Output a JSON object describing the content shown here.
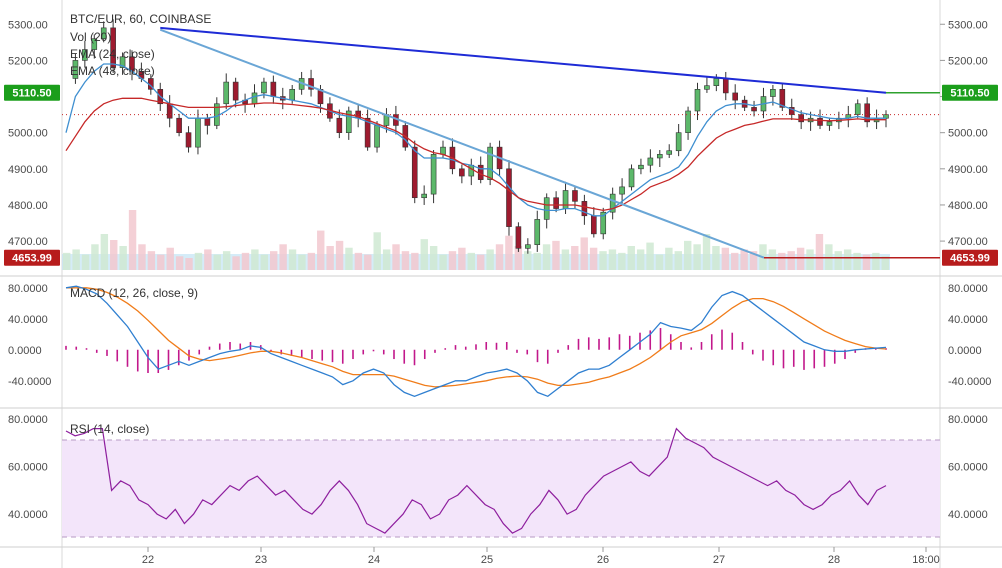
{
  "chart_data": [
    {
      "type": "line",
      "panel": "price",
      "title": "BTC/EUR, 60, COINBASE",
      "legend": [
        "BTC/EUR, 60, COINBASE",
        "Vol (20)",
        "EMA (24, close)",
        "EMA (48, close)"
      ],
      "y_ticks": [
        "5300.00",
        "5200.00",
        "5100.00",
        "5000.00",
        "4900.00",
        "4800.00",
        "4700.00"
      ],
      "ylim": [
        4620,
        5345
      ],
      "x_ticks": [
        "22",
        "23",
        "24",
        "25",
        "26",
        "27",
        "28",
        "18:00"
      ],
      "price_tags": [
        {
          "label": "5110.50",
          "color": "#1b9e1b"
        },
        {
          "label": "4653.99",
          "color": "#b71c1c"
        }
      ],
      "price_path": [
        5150,
        5200,
        5230,
        5260,
        5290,
        5180,
        5210,
        5170,
        5150,
        5120,
        5080,
        5040,
        5000,
        4960,
        5040,
        5020,
        5080,
        5140,
        5090,
        5080,
        5110,
        5140,
        5100,
        5090,
        5120,
        5150,
        5120,
        5080,
        5040,
        5000,
        5060,
        5040,
        4960,
        5020,
        5050,
        5020,
        4960,
        4820,
        4830,
        4940,
        4960,
        4900,
        4880,
        4910,
        4870,
        4960,
        4900,
        4740,
        4680,
        4690,
        4760,
        4820,
        4790,
        4840,
        4810,
        4770,
        4720,
        4780,
        4830,
        4850,
        4900,
        4910,
        4930,
        4940,
        4950,
        5000,
        5060,
        5120,
        5130,
        5150,
        5110,
        5090,
        5070,
        5060,
        5100,
        5120,
        5070,
        5050,
        5030,
        5040,
        5020,
        5030,
        5040,
        5050,
        5080,
        5030,
        5040,
        5050
      ],
      "ema24": [
        5000,
        5100,
        5140,
        5170,
        5190,
        5190,
        5185,
        5170,
        5150,
        5130,
        5100,
        5080,
        5060,
        5040,
        5040,
        5040,
        5045,
        5060,
        5080,
        5090,
        5100,
        5105,
        5100,
        5095,
        5090,
        5085,
        5080,
        5070,
        5060,
        5050,
        5045,
        5040,
        5030,
        5020,
        5010,
        5000,
        4980,
        4950,
        4930,
        4930,
        4930,
        4925,
        4915,
        4910,
        4900,
        4900,
        4880,
        4850,
        4820,
        4800,
        4790,
        4785,
        4785,
        4790,
        4790,
        4780,
        4770,
        4770,
        4790,
        4810,
        4830,
        4850,
        4870,
        4880,
        4890,
        4905,
        4940,
        4990,
        5030,
        5060,
        5075,
        5080,
        5080,
        5075,
        5080,
        5085,
        5075,
        5065,
        5055,
        5050,
        5045,
        5040,
        5038,
        5040,
        5045,
        5040,
        5040,
        5040
      ],
      "ema48": [
        4950,
        4990,
        5030,
        5060,
        5080,
        5090,
        5095,
        5095,
        5095,
        5090,
        5085,
        5080,
        5075,
        5070,
        5070,
        5070,
        5070,
        5072,
        5075,
        5078,
        5080,
        5082,
        5082,
        5080,
        5078,
        5075,
        5072,
        5068,
        5062,
        5055,
        5050,
        5045,
        5035,
        5025,
        5015,
        5005,
        4990,
        4970,
        4955,
        4945,
        4940,
        4930,
        4915,
        4900,
        4885,
        4875,
        4860,
        4840,
        4820,
        4810,
        4805,
        4800,
        4800,
        4800,
        4800,
        4795,
        4790,
        4785,
        4790,
        4800,
        4815,
        4830,
        4850,
        4860,
        4870,
        4885,
        4905,
        4935,
        4960,
        4985,
        5000,
        5010,
        5020,
        5025,
        5032,
        5038,
        5038,
        5038,
        5036,
        5035,
        5034,
        5033,
        5034,
        5036,
        5038,
        5036,
        5036,
        5036
      ],
      "volume": [
        20,
        24,
        18,
        30,
        42,
        35,
        28,
        70,
        30,
        22,
        18,
        26,
        16,
        14,
        20,
        24,
        18,
        22,
        16,
        20,
        24,
        18,
        22,
        30,
        24,
        18,
        20,
        46,
        28,
        34,
        26,
        20,
        18,
        44,
        24,
        30,
        22,
        20,
        36,
        28,
        18,
        22,
        26,
        20,
        18,
        24,
        30,
        40,
        28,
        22,
        20,
        30,
        34,
        24,
        28,
        38,
        26,
        22,
        24,
        20,
        28,
        24,
        32,
        18,
        26,
        22,
        34,
        30,
        42,
        28,
        26,
        20,
        24,
        22,
        30,
        24,
        20,
        22,
        26,
        24,
        42,
        30,
        22,
        24,
        20,
        18,
        20,
        16
      ],
      "trendlines": [
        "resistance",
        "support"
      ]
    },
    {
      "type": "line",
      "panel": "macd",
      "title": "MACD (12, 26, close, 9)",
      "y_ticks": [
        "80.0000",
        "40.0000",
        "0.0000",
        "-40.0000"
      ],
      "ylim": [
        -70,
        90
      ],
      "macd": [
        80,
        82,
        78,
        72,
        60,
        45,
        30,
        10,
        -10,
        -25,
        -20,
        -15,
        -20,
        -15,
        -10,
        -5,
        -2,
        0,
        5,
        3,
        -5,
        -10,
        -15,
        -20,
        -25,
        -30,
        -35,
        -45,
        -40,
        -30,
        -25,
        -30,
        -45,
        -55,
        -60,
        -55,
        -50,
        -45,
        -40,
        -40,
        -35,
        -30,
        -28,
        -25,
        -30,
        -40,
        -55,
        -60,
        -50,
        -40,
        -30,
        -25,
        -25,
        -20,
        -10,
        0,
        10,
        20,
        35,
        30,
        28,
        25,
        35,
        55,
        70,
        75,
        70,
        60,
        50,
        40,
        30,
        20,
        10,
        5,
        0,
        -2,
        -2,
        0,
        1,
        2,
        3
      ],
      "signal": [
        80,
        80,
        80,
        78,
        74,
        68,
        60,
        50,
        38,
        25,
        12,
        2,
        -8,
        -12,
        -14,
        -12,
        -10,
        -7,
        -4,
        -2,
        -2,
        -4,
        -7,
        -10,
        -14,
        -18,
        -22,
        -28,
        -32,
        -32,
        -32,
        -32,
        -34,
        -38,
        -42,
        -46,
        -48,
        -47,
        -46,
        -44,
        -42,
        -40,
        -37,
        -35,
        -34,
        -35,
        -38,
        -43,
        -46,
        -46,
        -44,
        -42,
        -38,
        -35,
        -30,
        -25,
        -18,
        -10,
        0,
        10,
        18,
        22,
        26,
        34,
        44,
        54,
        62,
        66,
        66,
        62,
        56,
        48,
        40,
        32,
        24,
        18,
        12,
        8,
        4,
        2,
        1
      ],
      "histogram": [
        5,
        4,
        2,
        -4,
        -8,
        -15,
        -22,
        -28,
        -30,
        -30,
        -26,
        -20,
        -14,
        -6,
        4,
        8,
        10,
        8,
        10,
        6,
        -2,
        -6,
        -8,
        -10,
        -12,
        -14,
        -16,
        -18,
        -12,
        -6,
        -2,
        -6,
        -12,
        -18,
        -20,
        -12,
        -4,
        2,
        6,
        4,
        7,
        10,
        9,
        10,
        -4,
        -6,
        -16,
        -18,
        -4,
        6,
        14,
        16,
        14,
        16,
        20,
        18,
        22,
        25,
        28,
        20,
        10,
        3,
        10,
        20,
        26,
        22,
        10,
        -6,
        -14,
        -20,
        -24,
        -22,
        -26,
        -24,
        -22,
        -18,
        -12,
        -4,
        2,
        3,
        2
      ]
    },
    {
      "type": "line",
      "panel": "rsi",
      "title": "RSI (14, close)",
      "y_ticks": [
        "80.0000",
        "60.0000",
        "40.0000"
      ],
      "ylim": [
        27,
        83
      ],
      "band": [
        30,
        70
      ],
      "rsi": [
        75,
        73,
        74,
        76,
        76,
        50,
        54,
        52,
        46,
        44,
        40,
        38,
        42,
        36,
        40,
        46,
        44,
        48,
        52,
        50,
        54,
        56,
        52,
        48,
        50,
        46,
        42,
        40,
        44,
        50,
        54,
        50,
        44,
        36,
        34,
        32,
        36,
        40,
        46,
        44,
        38,
        40,
        46,
        48,
        52,
        48,
        44,
        42,
        36,
        32,
        34,
        40,
        44,
        50,
        46,
        40,
        42,
        48,
        52,
        56,
        58,
        60,
        62,
        58,
        56,
        60,
        64,
        76,
        72,
        70,
        68,
        64,
        62,
        60,
        58,
        56,
        54,
        52,
        54,
        50,
        48,
        44,
        42,
        44,
        48,
        50,
        54,
        48,
        44,
        50,
        52
      ]
    }
  ]
}
